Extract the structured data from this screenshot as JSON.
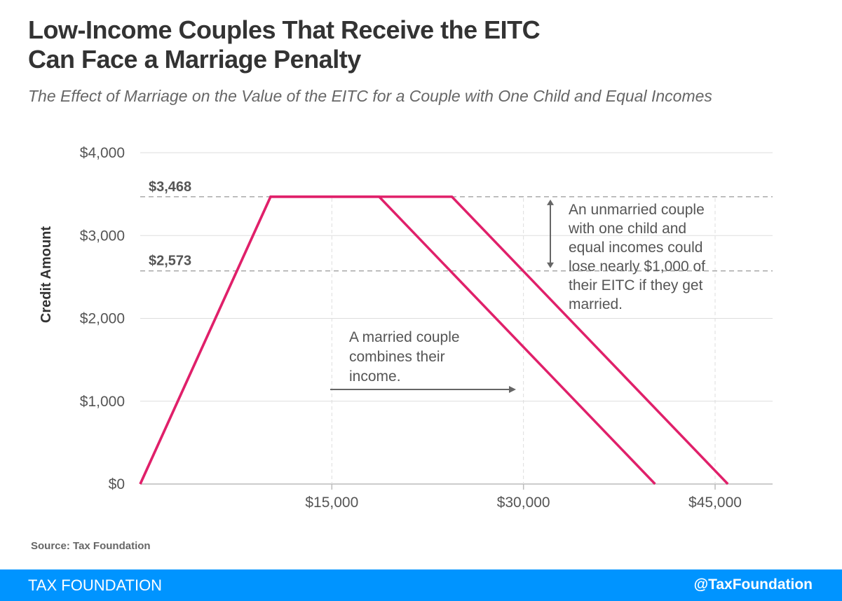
{
  "title_line1": "Low-Income Couples That Receive the EITC",
  "title_line2": "Can Face a Marriage Penalty",
  "source": "Source: Tax Foundation",
  "footer": {
    "brand": "TAX FOUNDATION",
    "handle": "@TaxFoundation"
  },
  "colors": {
    "series": "#e0206a",
    "footer": "#0094ff",
    "grid": "#dddddd",
    "text": "#555555"
  },
  "chart_data": {
    "type": "line",
    "title": "",
    "subtitle": "The Effect of Marriage on the Value of the EITC for a Couple with One Child and Equal Incomes",
    "xlabel": "",
    "ylabel": "Credit Amount",
    "xlim": [
      0,
      49500
    ],
    "ylim": [
      0,
      4000
    ],
    "xticks": [
      15000,
      30000,
      45000
    ],
    "xtick_labels": [
      "$15,000",
      "$30,000",
      "$45,000"
    ],
    "yticks": [
      0,
      1000,
      2000,
      3000,
      4000
    ],
    "ytick_labels": [
      "$0",
      "$1,000",
      "$2,000",
      "$3,000",
      "$4,000"
    ],
    "grid": true,
    "series": [
      {
        "x": [
          0,
          10200,
          18700,
          40300
        ],
        "y": [
          0,
          3468,
          3468,
          0
        ]
      },
      {
        "x": [
          0,
          10200,
          24400,
          46000
        ],
        "y": [
          0,
          3468,
          3468,
          0
        ]
      }
    ],
    "reference_lines": [
      {
        "y": 3468,
        "label": "$3,468"
      },
      {
        "y": 2573,
        "label": "$2,573"
      }
    ],
    "annotations": [
      {
        "lines": [
          "An unmarried couple",
          "with one child and",
          "equal incomes could",
          "lose nearly $1,000 of",
          "their EITC if they get",
          "married."
        ]
      },
      {
        "lines": [
          "A married couple",
          "combines their",
          "income."
        ]
      }
    ]
  }
}
